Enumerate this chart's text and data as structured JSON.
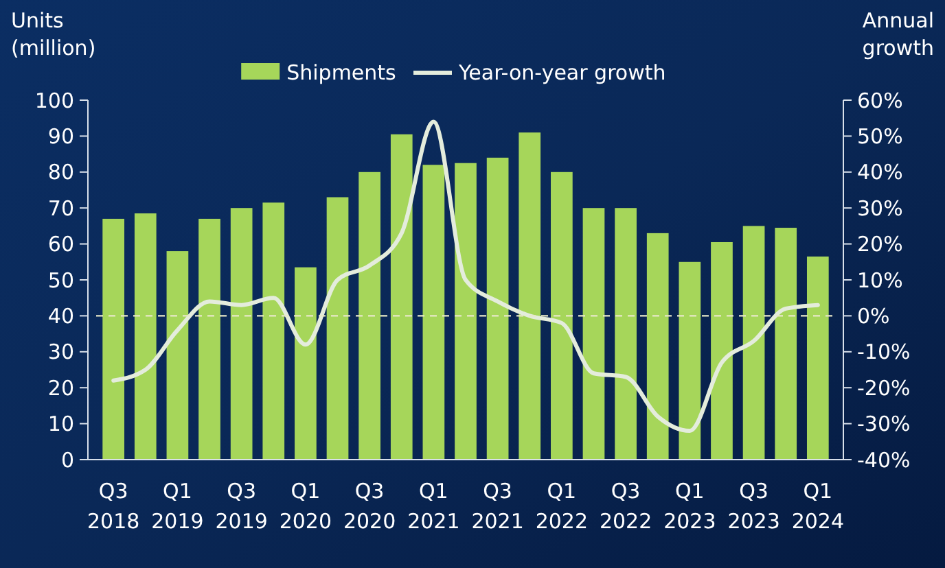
{
  "chart_data": {
    "type": "bar",
    "ylabel": "Units (million)",
    "y2label": "Annual growth",
    "categories": [
      "Q3 2018",
      null,
      "Q1 2019",
      null,
      "Q3 2019",
      null,
      "Q1 2020",
      null,
      "Q3 2020",
      null,
      "Q1 2021",
      null,
      "Q3 2021",
      null,
      "Q1 2022",
      null,
      "Q3 2022",
      null,
      "Q1 2023",
      null,
      "Q3 2023",
      null,
      "Q1 2024"
    ],
    "series": [
      {
        "name": "Shipments",
        "color": "#a6d65a",
        "values": [
          67,
          68.5,
          58,
          67,
          70,
          71.5,
          53.5,
          73,
          80,
          90.5,
          82,
          82.5,
          84,
          91,
          80,
          70,
          70,
          63,
          55,
          60.5,
          65,
          64.5,
          56.5
        ]
      },
      {
        "name": "Year-on-year growth",
        "type": "line",
        "axis": "y2",
        "color": "#e4ecdc",
        "values": [
          -18,
          -15,
          -4,
          4,
          3,
          5,
          -8,
          10,
          14,
          23,
          54,
          10,
          4,
          0,
          -2,
          -16,
          -17,
          -28,
          -32,
          -13,
          -7,
          2,
          3
        ]
      }
    ],
    "ylim": [
      0,
      100
    ],
    "yticks": [
      0,
      10,
      20,
      30,
      40,
      50,
      60,
      70,
      80,
      90,
      100
    ],
    "y2lim": [
      -40,
      60
    ],
    "y2ticks": [
      {
        "value": -40,
        "label": "-40%"
      },
      {
        "value": -30,
        "label": "-30%"
      },
      {
        "value": -20,
        "label": "-20%"
      },
      {
        "value": -10,
        "label": "-10%"
      },
      {
        "value": 0,
        "label": "0%"
      },
      {
        "value": 10,
        "label": "10%"
      },
      {
        "value": 20,
        "label": "20%"
      },
      {
        "value": 30,
        "label": "30%"
      },
      {
        "value": 40,
        "label": "40%"
      },
      {
        "value": 50,
        "label": "50%"
      },
      {
        "value": 60,
        "label": "60%"
      }
    ],
    "ref_lines": [
      {
        "axis": "y2",
        "value": 0,
        "color": "#e8e8c8",
        "line_style": "dashed"
      }
    ],
    "legend": "top",
    "grid": false
  }
}
